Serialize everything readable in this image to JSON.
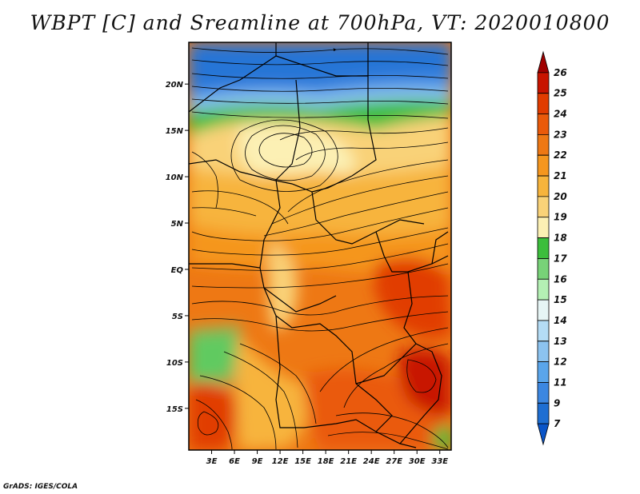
{
  "title": "WBPT [C] and Sreamline at 700hPa, VT: 2020010800",
  "credit": "GrADS: IGES/COLA",
  "map": {
    "lat_labels": [
      "20N",
      "15N",
      "10N",
      "5N",
      "EQ",
      "5S",
      "10S",
      "15S"
    ],
    "lat_values": [
      20,
      15,
      10,
      5,
      0,
      -5,
      -10,
      -15
    ],
    "lon_labels": [
      "3E",
      "6E",
      "9E",
      "12E",
      "15E",
      "18E",
      "21E",
      "24E",
      "27E",
      "30E",
      "33E"
    ],
    "lon_values": [
      3,
      6,
      9,
      12,
      15,
      18,
      21,
      24,
      27,
      30,
      33
    ],
    "lat_range": [
      -19.5,
      24.5
    ],
    "lon_range": [
      0,
      34.5
    ]
  },
  "colorbar": {
    "levels": [
      "26",
      "25",
      "24",
      "23",
      "22",
      "21",
      "20",
      "19",
      "18",
      "17",
      "16",
      "15",
      "14",
      "13",
      "12",
      "11",
      "9",
      "7"
    ],
    "colors": [
      "#a00000",
      "#c81400",
      "#e13c00",
      "#ea5a0a",
      "#ee7814",
      "#f5961e",
      "#f7b43c",
      "#f9d278",
      "#fcf0b4",
      "#3cbe3c",
      "#78d278",
      "#b4f0b4",
      "#e6f5f5",
      "#b4dcf5",
      "#8cc3f0",
      "#5aa5eb",
      "#3c87e1",
      "#1e6ed2",
      "#0a55c8"
    ]
  }
}
